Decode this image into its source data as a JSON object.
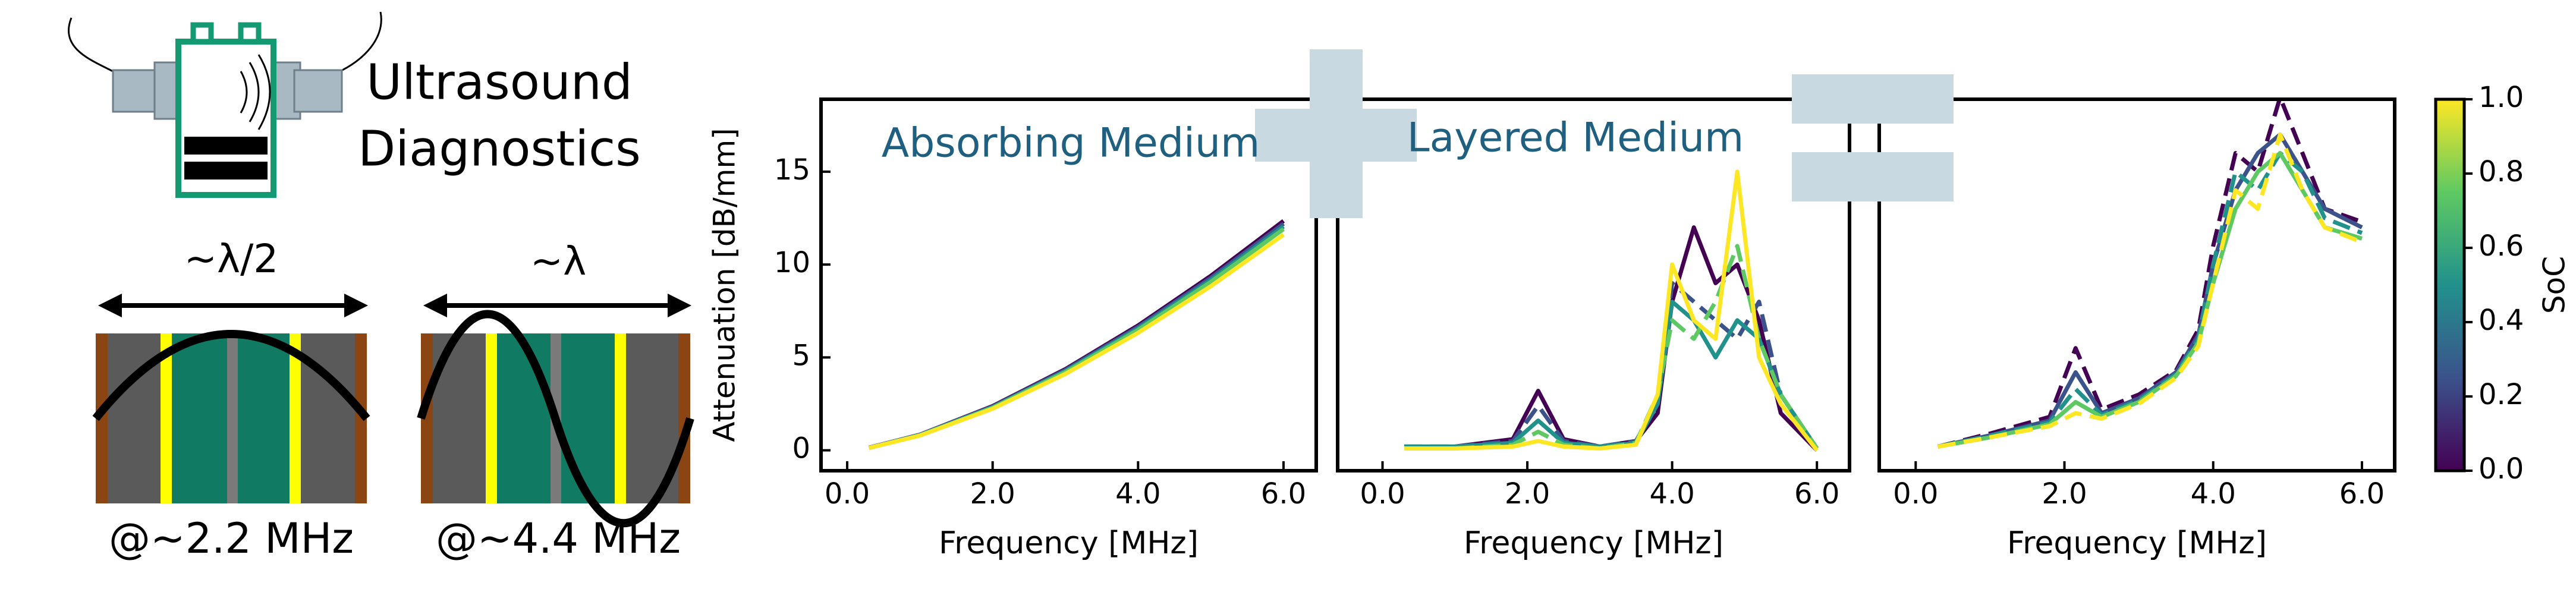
{
  "diagram": {
    "title": [
      "Ultrasound",
      "Diagnostics"
    ],
    "modes": [
      {
        "wavelength": "~λ/2",
        "frequency": "@~2.2 MHz"
      },
      {
        "wavelength": "~λ",
        "frequency": "@~4.4 MHz"
      }
    ]
  },
  "chart_data": [
    {
      "type": "line",
      "title": "Absorbing Medium",
      "xlabel": "Frequency [MHz]",
      "ylabel": "Attenuation [dB/mm]",
      "x": [
        0.3,
        1,
        2,
        3,
        4,
        5,
        6
      ],
      "series": [
        {
          "color": "#440154",
          "values": [
            0.14,
            0.84,
            2.38,
            4.37,
            6.72,
            9.39,
            12.35
          ]
        },
        {
          "color": "#3b528b",
          "values": [
            0.14,
            0.83,
            2.35,
            4.32,
            6.64,
            9.28,
            12.2
          ]
        },
        {
          "color": "#21918c",
          "values": [
            0.13,
            0.82,
            2.32,
            4.26,
            6.56,
            9.17,
            12.05
          ]
        },
        {
          "color": "#5ec962",
          "values": [
            0.13,
            0.81,
            2.29,
            4.21,
            6.48,
            9.06,
            11.91
          ]
        },
        {
          "color": "#fde725",
          "values": [
            0.13,
            0.79,
            2.24,
            4.11,
            6.32,
            8.83,
            11.61
          ]
        }
      ],
      "xlim": [
        -0.36,
        6.45
      ],
      "ylim": [
        -1.1,
        18.9
      ],
      "xticks": [
        {
          "value": 0,
          "label": "0.0"
        },
        {
          "value": 2,
          "label": "2.0"
        },
        {
          "value": 4,
          "label": "4.0"
        },
        {
          "value": 6,
          "label": "6.0"
        }
      ],
      "yticks": [
        0,
        5,
        10,
        15
      ]
    },
    {
      "type": "line",
      "title": "Layered Medium",
      "xlabel": "Frequency [MHz]",
      "x": [
        0.3,
        1,
        1.8,
        2.15,
        2.5,
        3,
        3.5,
        3.8,
        4,
        4.3,
        4.6,
        4.9,
        5.2,
        5.5,
        6.0
      ],
      "series": [
        {
          "color": "#440154",
          "values": [
            0.2,
            0.2,
            0.6,
            3.2,
            0.6,
            0.2,
            0.5,
            2,
            8,
            12,
            9,
            10,
            7,
            2,
            0
          ]
        },
        {
          "color": "#3b528b",
          "dashed": true,
          "values": [
            0.2,
            0.2,
            0.5,
            2.4,
            0.5,
            0.2,
            0.5,
            2.5,
            9,
            8,
            7,
            6,
            8,
            3,
            0.1
          ]
        },
        {
          "color": "#21918c",
          "values": [
            0.2,
            0.2,
            0.4,
            1.6,
            0.4,
            0.2,
            0.4,
            2.5,
            8,
            7,
            5,
            7,
            6,
            3,
            0.1
          ]
        },
        {
          "color": "#5ec962",
          "dashed": true,
          "values": [
            0.1,
            0.1,
            0.3,
            1.0,
            0.3,
            0.1,
            0.4,
            3,
            7,
            6,
            8,
            11,
            6,
            3,
            0.1
          ]
        },
        {
          "color": "#fde725",
          "values": [
            0.1,
            0.1,
            0.2,
            0.5,
            0.2,
            0.1,
            0.3,
            3,
            10,
            7,
            6,
            15,
            5,
            2.5,
            0
          ]
        }
      ],
      "xlim": [
        -0.62,
        6.45
      ],
      "ylim": [
        -1.1,
        18.9
      ],
      "xticks": [
        {
          "value": 0,
          "label": "0.0"
        },
        {
          "value": 2,
          "label": "2.0"
        },
        {
          "value": 4,
          "label": "4.0"
        },
        {
          "value": 6,
          "label": "6.0"
        }
      ]
    },
    {
      "type": "line",
      "xlabel": "Frequency [MHz]",
      "x": [
        0.3,
        1,
        1.8,
        2.15,
        2.5,
        3,
        3.5,
        3.8,
        4,
        4.3,
        4.6,
        4.9,
        5.2,
        5.5,
        6.0
      ],
      "series": [
        {
          "color": "#440154",
          "dashed": true,
          "values": [
            0.2,
            0.9,
            1.8,
            5.5,
            2.2,
            3.0,
            4.3,
            6.5,
            11,
            16,
            15,
            19,
            16,
            13,
            12.3
          ]
        },
        {
          "color": "#3b528b",
          "values": [
            0.2,
            0.8,
            1.6,
            4.2,
            2.0,
            2.8,
            4.2,
            6.2,
            10,
            14,
            16,
            17,
            15,
            13,
            12
          ]
        },
        {
          "color": "#21918c",
          "dashed": true,
          "values": [
            0.2,
            0.8,
            1.5,
            3.3,
            1.9,
            2.7,
            4.1,
            6.0,
            10,
            15,
            14,
            16,
            15,
            12.5,
            11.7
          ]
        },
        {
          "color": "#5ec962",
          "values": [
            0.2,
            0.7,
            1.4,
            2.6,
            1.8,
            2.6,
            4.0,
            5.8,
            9,
            13,
            15,
            16,
            14,
            12,
            11.4
          ]
        },
        {
          "color": "#fde725",
          "dashed": true,
          "values": [
            0.2,
            0.7,
            1.3,
            2.0,
            1.7,
            2.5,
            3.9,
            5.6,
            9,
            14,
            13,
            17,
            14,
            12,
            11.2
          ]
        }
      ],
      "xlim": [
        -0.49,
        6.44
      ],
      "ylim": [
        -1.1,
        18.9
      ],
      "xticks": [
        {
          "value": 0,
          "label": "0.0"
        },
        {
          "value": 2,
          "label": "2.0"
        },
        {
          "value": 4,
          "label": "4.0"
        },
        {
          "value": 6,
          "label": "6.0"
        }
      ]
    },
    {
      "type": "colorbar",
      "label": "SoC",
      "ylim": [
        0,
        1
      ],
      "colors": [
        "#440154",
        "#3b528b",
        "#21918c",
        "#5ec962",
        "#fde725"
      ],
      "yticks": [
        {
          "value": 0,
          "label": "0.0"
        },
        {
          "value": 0.2,
          "label": "0.2"
        },
        {
          "value": 0.4,
          "label": "0.4"
        },
        {
          "value": 0.6,
          "label": "0.6"
        },
        {
          "value": 0.8,
          "label": "0.8"
        },
        {
          "value": 1,
          "label": "1.0"
        }
      ]
    }
  ]
}
